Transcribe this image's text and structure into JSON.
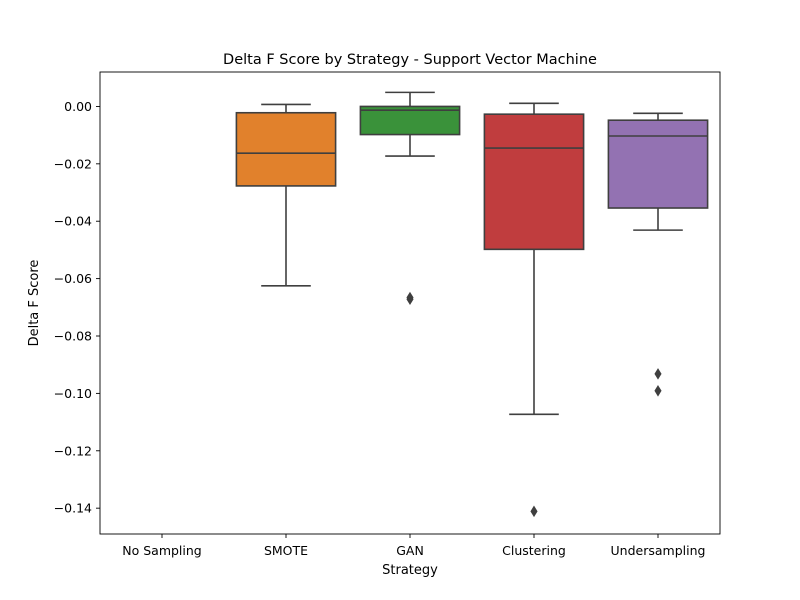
{
  "chart_data": {
    "type": "box",
    "title": "Delta F Score by Strategy - Support Vector Machine",
    "xlabel": "Strategy",
    "ylabel": "Delta F Score",
    "ylim": [
      -0.149,
      0.012
    ],
    "yticks": [
      0.0,
      -0.02,
      -0.04,
      -0.06,
      -0.08,
      -0.1,
      -0.12,
      -0.14
    ],
    "ytick_labels": [
      "0.00",
      "−0.02",
      "−0.04",
      "−0.06",
      "−0.08",
      "−0.10",
      "−0.12",
      "−0.14"
    ],
    "grid": false,
    "legend": "none",
    "categories": [
      "No Sampling",
      "SMOTE",
      "GAN",
      "Clustering",
      "Undersampling"
    ],
    "boxes": [
      {
        "category": "No Sampling",
        "empty": true
      },
      {
        "category": "SMOTE",
        "color": "#e1812c",
        "whisker_low": -0.0625,
        "q1": -0.0277,
        "median": -0.0163,
        "q3": -0.0022,
        "whisker_high": 0.0007,
        "outliers": []
      },
      {
        "category": "GAN",
        "color": "#3a923a",
        "whisker_low": -0.0173,
        "q1": -0.0098,
        "median": -0.0013,
        "q3": 0.0,
        "whisker_high": 0.0049,
        "outliers": [
          -0.0672,
          -0.0666
        ]
      },
      {
        "category": "Clustering",
        "color": "#c03d3e",
        "whisker_low": -0.1073,
        "q1": -0.0498,
        "median": -0.0145,
        "q3": -0.0027,
        "whisker_high": 0.0011,
        "outliers": [
          -0.1411
        ]
      },
      {
        "category": "Undersampling",
        "color": "#9372b2",
        "whisker_low": -0.0431,
        "q1": -0.0354,
        "median": -0.0103,
        "q3": -0.0048,
        "whisker_high": -0.0024,
        "outliers": [
          -0.0932,
          -0.0991
        ]
      }
    ]
  }
}
